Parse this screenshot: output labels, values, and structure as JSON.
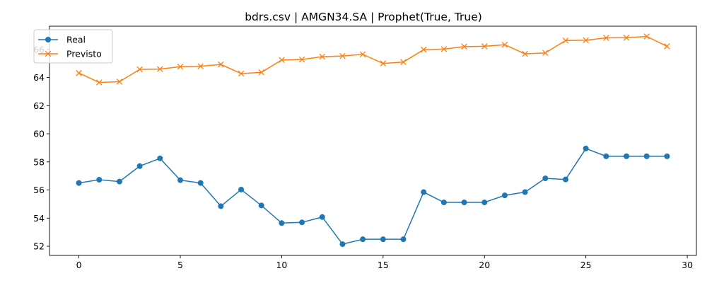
{
  "chart_data": {
    "type": "line",
    "title": "bdrs.csv | AMGN34.SA | Prophet(True, True)",
    "xlabel": "",
    "ylabel": "",
    "x": [
      0,
      1,
      2,
      3,
      4,
      5,
      6,
      7,
      8,
      9,
      10,
      11,
      12,
      13,
      14,
      15,
      16,
      17,
      18,
      19,
      20,
      21,
      22,
      23,
      24,
      25,
      26,
      27,
      28,
      29
    ],
    "xlim": [
      -1.45,
      30.45
    ],
    "ylim": [
      51.35,
      67.65
    ],
    "xticks": [
      0,
      5,
      10,
      15,
      20,
      25,
      30
    ],
    "yticks": [
      52,
      54,
      56,
      58,
      60,
      62,
      64,
      66
    ],
    "grid": false,
    "legend_position": "upper left",
    "series": [
      {
        "name": "Real",
        "color": "#1f77b4",
        "marker": "circle",
        "values": [
          56.5,
          56.73,
          56.6,
          57.7,
          58.25,
          56.7,
          56.5,
          54.85,
          56.03,
          54.9,
          53.65,
          53.7,
          54.08,
          52.15,
          52.5,
          52.5,
          52.5,
          55.85,
          55.12,
          55.12,
          55.12,
          55.62,
          55.85,
          56.83,
          56.75,
          58.95,
          58.4,
          58.4,
          58.4,
          58.4
        ]
      },
      {
        "name": "Previsto",
        "color": "#ff7f0e",
        "marker": "x",
        "values": [
          64.32,
          63.65,
          63.7,
          64.58,
          64.6,
          64.77,
          64.8,
          64.93,
          64.28,
          64.37,
          65.25,
          65.28,
          65.48,
          65.53,
          65.65,
          65.0,
          65.1,
          65.98,
          66.02,
          66.2,
          66.22,
          66.33,
          65.68,
          65.75,
          66.63,
          66.65,
          66.82,
          66.83,
          66.92,
          66.22
        ]
      }
    ]
  }
}
